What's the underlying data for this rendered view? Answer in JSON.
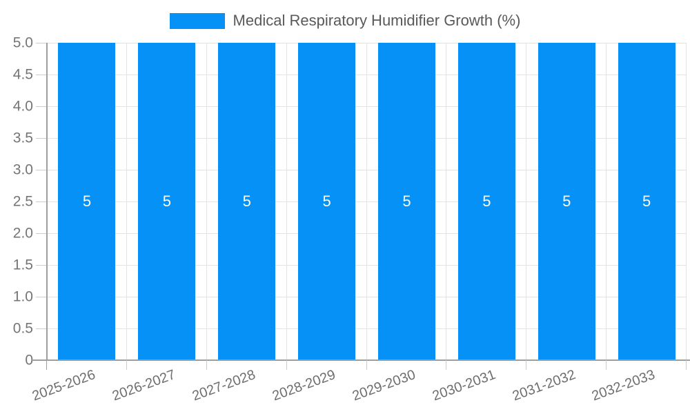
{
  "chart_data": {
    "type": "bar",
    "title": "Medical Respiratory Humidifier Growth (%)",
    "categories": [
      "2025-2026",
      "2026-2027",
      "2027-2028",
      "2028-2029",
      "2029-2030",
      "2030-2031",
      "2031-2032",
      "2032-2033"
    ],
    "values": [
      5,
      5,
      5,
      5,
      5,
      5,
      5,
      5
    ],
    "bar_value_labels": [
      "5",
      "5",
      "5",
      "5",
      "5",
      "5",
      "5",
      "5"
    ],
    "xlabel": "",
    "ylabel": "",
    "ylim": [
      0,
      5
    ],
    "ytick_labels": [
      "0",
      "0.5",
      "1.0",
      "1.5",
      "2.0",
      "2.5",
      "3.0",
      "3.5",
      "4.0",
      "4.5",
      "5.0"
    ],
    "ytick_values": [
      0,
      0.5,
      1,
      1.5,
      2,
      2.5,
      3,
      3.5,
      4,
      4.5,
      5
    ],
    "grid": true,
    "legend_position": "top-center",
    "legend_entries": [
      "Medical Respiratory Humidifier Growth (%)"
    ],
    "colors": {
      "bar": "#0591f5",
      "bar_value_text": "#ffffff",
      "gridline": "#e3e3e3",
      "axis_line": "#9e9e9e",
      "tick_mark": "#cccccc",
      "y_label_text": "#757575",
      "x_label_text": "#6e6e6e",
      "legend_text": "#595959",
      "background": "#ffffff"
    }
  }
}
